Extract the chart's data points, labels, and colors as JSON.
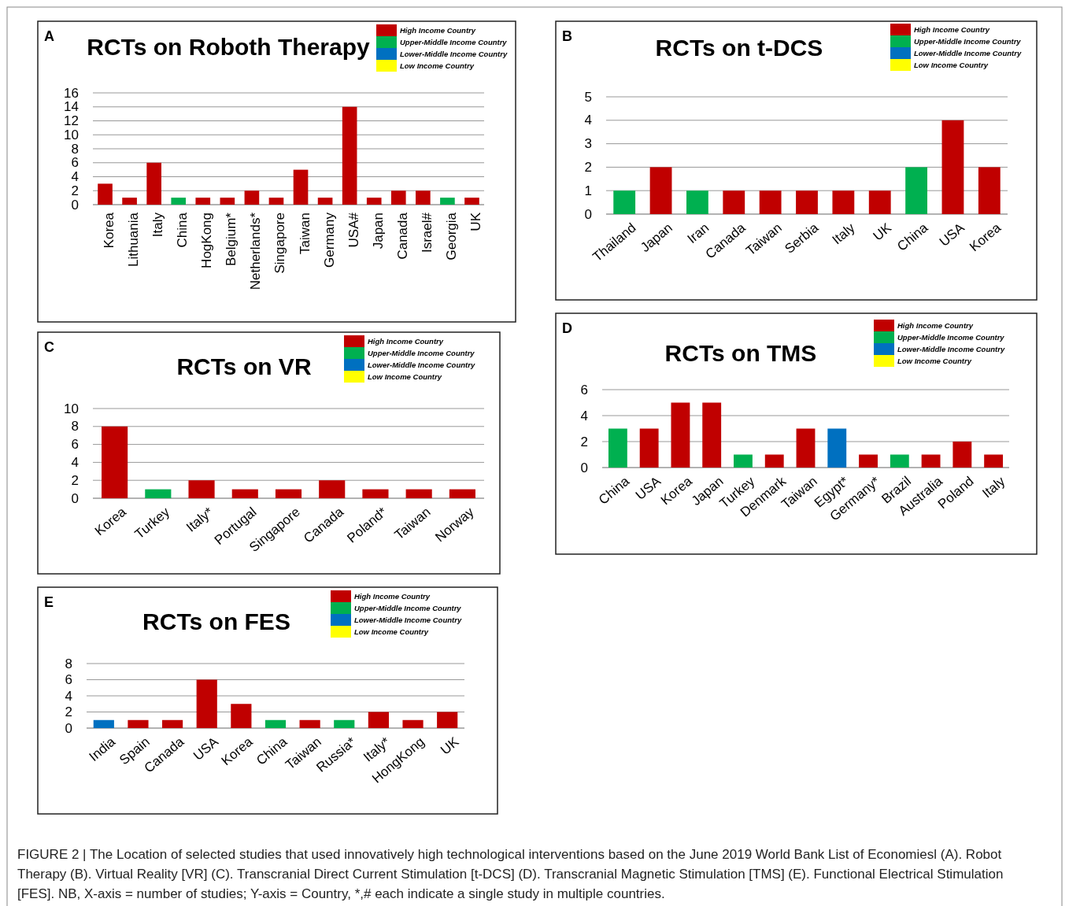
{
  "chart_data": [
    {
      "type": "bar",
      "subtitle": "A",
      "title": "RCTs on Roboth Therapy",
      "categories": [
        "Korea",
        "Lithuania",
        "Italy",
        "China",
        "HogKong",
        "Belgium*",
        "Netherlands*",
        "Singapore",
        "Taiwan",
        "Germany",
        "USA#",
        "Japan",
        "Canada",
        "Israel#",
        "Georgia",
        "UK"
      ],
      "stacked": true,
      "legend": "top right",
      "grid": "y",
      "ylim": [
        0,
        16
      ],
      "yticks": [
        0,
        2,
        4,
        6,
        8,
        10,
        12,
        14,
        16
      ],
      "series": [
        {
          "name": "High Income Country",
          "color": "#c00000",
          "values": [
            3,
            1,
            6,
            null,
            1,
            1,
            2,
            1,
            5,
            1,
            14,
            1,
            2,
            2,
            null,
            1
          ]
        },
        {
          "name": "Upper-Middle Income Country",
          "color": "#00b050",
          "values": [
            null,
            null,
            null,
            1,
            null,
            null,
            null,
            null,
            null,
            null,
            null,
            null,
            null,
            null,
            1,
            null
          ]
        },
        {
          "name": "Lower-Middle Income Country",
          "color": "#0070c0",
          "values": [
            null,
            null,
            null,
            null,
            null,
            null,
            null,
            null,
            null,
            null,
            null,
            null,
            null,
            null,
            null,
            null
          ]
        },
        {
          "name": "Low Income Country",
          "color": "#ffff00",
          "values": [
            null,
            null,
            null,
            null,
            null,
            null,
            null,
            null,
            null,
            null,
            null,
            null,
            null,
            null,
            null,
            null
          ]
        }
      ]
    },
    {
      "type": "bar",
      "subtitle": "B",
      "title": "RCTs on t-DCS",
      "categories": [
        "Thailand",
        "Japan",
        "Iran",
        "Canada",
        "Taiwan",
        "Serbia",
        "Italy",
        "UK",
        "China",
        "USA",
        "Korea"
      ],
      "stacked": true,
      "legend": "top right",
      "grid": "y",
      "ylim": [
        0,
        5
      ],
      "yticks": [
        0,
        1,
        2,
        3,
        4,
        5
      ],
      "series": [
        {
          "name": "High Income Country",
          "color": "#c00000",
          "values": [
            null,
            2,
            null,
            1,
            1,
            1,
            1,
            1,
            null,
            4,
            2
          ]
        },
        {
          "name": "Upper-Middle Income Country",
          "color": "#00b050",
          "values": [
            1,
            null,
            1,
            null,
            null,
            null,
            null,
            null,
            2,
            null,
            null
          ]
        },
        {
          "name": "Lower-Middle Income Country",
          "color": "#0070c0",
          "values": [
            null,
            null,
            null,
            null,
            null,
            null,
            null,
            null,
            null,
            null,
            null
          ]
        },
        {
          "name": "Low Income Country",
          "color": "#ffff00",
          "values": [
            null,
            null,
            null,
            null,
            null,
            null,
            null,
            null,
            null,
            null,
            null
          ]
        }
      ]
    },
    {
      "type": "bar",
      "subtitle": "C",
      "title": "RCTs on VR",
      "categories": [
        "Korea",
        "Turkey",
        "Italy*",
        "Portugal",
        "Singapore",
        "Canada",
        "Poland*",
        "Taiwan",
        "Norway"
      ],
      "stacked": true,
      "legend": "top right",
      "grid": "y",
      "ylim": [
        0,
        10
      ],
      "yticks": [
        0,
        2,
        4,
        6,
        8,
        10
      ],
      "series": [
        {
          "name": "High Income Country",
          "color": "#c00000",
          "values": [
            8,
            null,
            2,
            1,
            1,
            2,
            1,
            1,
            1
          ]
        },
        {
          "name": "Upper-Middle Income Country",
          "color": "#00b050",
          "values": [
            null,
            1,
            null,
            null,
            null,
            null,
            null,
            null,
            null
          ]
        },
        {
          "name": "Lower-Middle Income Country",
          "color": "#0070c0",
          "values": [
            null,
            null,
            null,
            null,
            null,
            null,
            null,
            null,
            null
          ]
        },
        {
          "name": "Low Income Country",
          "color": "#ffff00",
          "values": [
            null,
            null,
            null,
            null,
            null,
            null,
            null,
            null,
            null
          ]
        }
      ]
    },
    {
      "type": "bar",
      "subtitle": "D",
      "title": "RCTs on TMS",
      "categories": [
        "China",
        "USA",
        "Korea",
        "Japan",
        "Turkey",
        "Denmark",
        "Taiwan",
        "Egypt*",
        "Germany*",
        "Brazil",
        "Australia",
        "Poland",
        "Italy"
      ],
      "stacked": true,
      "legend": "top right",
      "grid": "y",
      "ylim": [
        0,
        6
      ],
      "yticks": [
        0,
        2,
        4,
        6
      ],
      "series": [
        {
          "name": "High Income Country",
          "color": "#c00000",
          "values": [
            null,
            3,
            5,
            5,
            null,
            1,
            3,
            null,
            1,
            null,
            1,
            2,
            1
          ]
        },
        {
          "name": "Upper-Middle Income Country",
          "color": "#00b050",
          "values": [
            3,
            null,
            null,
            null,
            1,
            null,
            null,
            null,
            null,
            1,
            null,
            null,
            null
          ]
        },
        {
          "name": "Lower-Middle Income Country",
          "color": "#0070c0",
          "values": [
            null,
            null,
            null,
            null,
            null,
            null,
            null,
            3,
            null,
            null,
            null,
            null,
            null
          ]
        },
        {
          "name": "Low Income Country",
          "color": "#ffff00",
          "values": [
            null,
            null,
            null,
            null,
            null,
            null,
            null,
            null,
            null,
            null,
            null,
            null,
            null
          ]
        }
      ]
    },
    {
      "type": "bar",
      "subtitle": "E",
      "title": "RCTs on FES",
      "categories": [
        "India",
        "Spain",
        "Canada",
        "USA",
        "Korea",
        "China",
        "Taiwan",
        "Russia*",
        "Italy*",
        "HongKong",
        "UK"
      ],
      "stacked": true,
      "legend": "top right",
      "grid": "y",
      "ylim": [
        0,
        8
      ],
      "yticks": [
        0,
        2,
        4,
        6,
        8
      ],
      "annotations": [
        "FIGURE 2 | The Location of selected studies that used innovatively high technological interventions based on the June 2019 World Bank List of Economiesl (A). Robot Therapy (B). Virtual Reality [VR] (C). Transcranial Direct Current Stimulation [t-DCS] (D). Transcranial Magnetic Stimulation [TMS] (E). Functional Electrical Stimulation [FES]. NB, X-axis = number of studies; Y-axis = Country, *,# each indicate a single study in multiple countries."
      ],
      "series": [
        {
          "name": "High Income Country",
          "color": "#c00000",
          "values": [
            null,
            1,
            1,
            6,
            3,
            null,
            1,
            null,
            2,
            1,
            2
          ]
        },
        {
          "name": "Upper-Middle Income Country",
          "color": "#00b050",
          "values": [
            null,
            null,
            null,
            null,
            null,
            1,
            null,
            1,
            null,
            null,
            null
          ]
        },
        {
          "name": "Lower-Middle Income Country",
          "color": "#0070c0",
          "values": [
            1,
            null,
            null,
            null,
            null,
            null,
            null,
            null,
            null,
            null,
            null
          ]
        },
        {
          "name": "Low Income Country",
          "color": "#ffff00",
          "values": [
            null,
            null,
            null,
            null,
            null,
            null,
            null,
            null,
            null,
            null,
            null
          ]
        }
      ]
    }
  ]
}
